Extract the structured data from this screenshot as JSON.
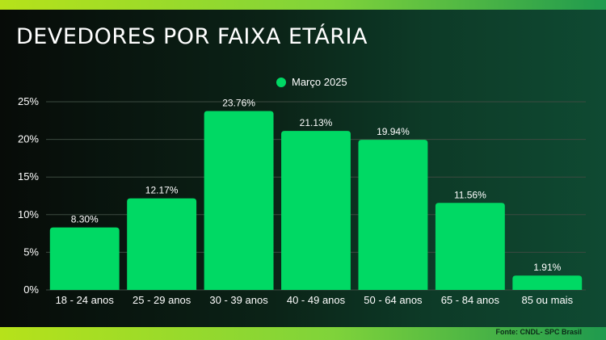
{
  "title": "DEVEDORES POR FAIXA ETÁRIA",
  "source": "Fonte: CNDL- SPC Brasil",
  "colors": {
    "bar": "#00d964",
    "grid": "#3c4a40"
  },
  "chart_data": {
    "type": "bar",
    "categories": [
      "18 - 24 anos",
      "25 - 29 anos",
      "30 - 39 anos",
      "40 - 49 anos",
      "50 - 64 anos",
      "65 - 84 anos",
      "85 ou mais"
    ],
    "series": [
      {
        "name": "Março 2025",
        "values": [
          8.3,
          12.17,
          23.76,
          21.13,
          19.94,
          11.56,
          1.91
        ]
      }
    ],
    "value_labels": [
      "8.30%",
      "12.17%",
      "23.76%",
      "21.13%",
      "19.94%",
      "11.56%",
      "1.91%"
    ],
    "yticks": [
      0,
      5,
      10,
      15,
      20,
      25
    ],
    "ytick_labels": [
      "0%",
      "5%",
      "10%",
      "15%",
      "20%",
      "25%"
    ],
    "ylim": [
      0,
      25
    ],
    "grid": true,
    "legend": "top-center"
  }
}
